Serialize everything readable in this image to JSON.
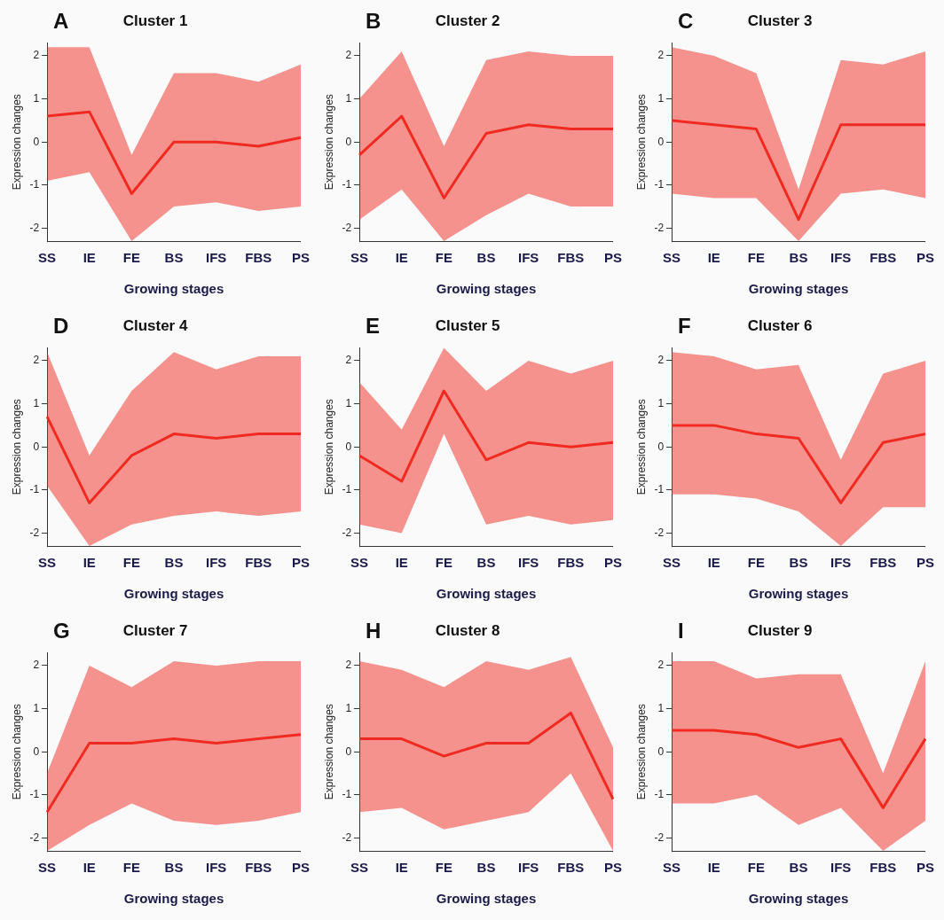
{
  "chart_data": [
    {
      "type": "line",
      "title": "Cluster 1",
      "xlabel": "Growing stages",
      "ylabel": "Expression changes",
      "annotations": [
        "A"
      ],
      "categories": [
        "SS",
        "IE",
        "FE",
        "BS",
        "IFS",
        "FBS",
        "PS"
      ],
      "ylim": [
        -2.3,
        2.3
      ],
      "yticks": [
        -2,
        -1,
        0,
        1,
        2
      ],
      "marker": "none",
      "series": [
        {
          "color": "#f02a20",
          "values": [
            0.6,
            0.7,
            -1.2,
            0,
            0,
            -0.1,
            0.1
          ],
          "lower": [
            -0.9,
            -0.7,
            -2.3,
            -1.5,
            -1.4,
            -1.6,
            -1.5
          ],
          "upper": [
            2.2,
            2.2,
            -0.3,
            1.6,
            1.6,
            1.4,
            1.8
          ]
        }
      ]
    },
    {
      "type": "line",
      "title": "Cluster 2",
      "xlabel": "Growing stages",
      "ylabel": "Expression changes",
      "annotations": [
        "B"
      ],
      "categories": [
        "SS",
        "IE",
        "FE",
        "BS",
        "IFS",
        "FBS",
        "PS"
      ],
      "ylim": [
        -2.3,
        2.3
      ],
      "yticks": [
        -2,
        -1,
        0,
        1,
        2
      ],
      "marker": "none",
      "series": [
        {
          "color": "#f02a20",
          "values": [
            -0.3,
            0.6,
            -1.3,
            0.2,
            0.4,
            0.3,
            0.3
          ],
          "lower": [
            -1.8,
            -1.1,
            -2.3,
            -1.7,
            -1.2,
            -1.5,
            -1.5
          ],
          "upper": [
            1,
            2.1,
            -0.1,
            1.9,
            2.1,
            2,
            2
          ]
        }
      ]
    },
    {
      "type": "line",
      "title": "Cluster 3",
      "xlabel": "Growing stages",
      "ylabel": "Expression changes",
      "annotations": [
        "C"
      ],
      "categories": [
        "SS",
        "IE",
        "FE",
        "BS",
        "IFS",
        "FBS",
        "PS"
      ],
      "ylim": [
        -2.3,
        2.3
      ],
      "yticks": [
        -2,
        -1,
        0,
        1,
        2
      ],
      "marker": "none",
      "series": [
        {
          "color": "#f02a20",
          "values": [
            0.5,
            0.4,
            0.3,
            -1.8,
            0.4,
            0.4,
            0.4
          ],
          "lower": [
            -1.2,
            -1.3,
            -1.3,
            -2.3,
            -1.2,
            -1.1,
            -1.3
          ],
          "upper": [
            2.2,
            2,
            1.6,
            -1.1,
            1.9,
            1.8,
            2.1
          ]
        }
      ]
    },
    {
      "type": "line",
      "title": "Cluster 4",
      "xlabel": "Growing stages",
      "ylabel": "Expression changes",
      "annotations": [
        "D"
      ],
      "categories": [
        "SS",
        "IE",
        "FE",
        "BS",
        "IFS",
        "FBS",
        "PS"
      ],
      "ylim": [
        -2.3,
        2.3
      ],
      "yticks": [
        -2,
        -1,
        0,
        1,
        2
      ],
      "marker": "none",
      "series": [
        {
          "color": "#f02a20",
          "values": [
            0.7,
            -1.3,
            -0.2,
            0.3,
            0.2,
            0.3,
            0.3
          ],
          "lower": [
            -0.9,
            -2.3,
            -1.8,
            -1.6,
            -1.5,
            -1.6,
            -1.5
          ],
          "upper": [
            2.2,
            -0.2,
            1.3,
            2.2,
            1.8,
            2.1,
            2.1
          ]
        }
      ]
    },
    {
      "type": "line",
      "title": "Cluster 5",
      "xlabel": "Growing stages",
      "ylabel": "Expression changes",
      "annotations": [
        "E"
      ],
      "categories": [
        "SS",
        "IE",
        "FE",
        "BS",
        "IFS",
        "FBS",
        "PS"
      ],
      "ylim": [
        -2.3,
        2.3
      ],
      "yticks": [
        -2,
        -1,
        0,
        1,
        2
      ],
      "marker": "none",
      "series": [
        {
          "color": "#f02a20",
          "values": [
            -0.2,
            -0.8,
            1.3,
            -0.3,
            0.1,
            0,
            0.1
          ],
          "lower": [
            -1.8,
            -2,
            0.3,
            -1.8,
            -1.6,
            -1.8,
            -1.7
          ],
          "upper": [
            1.5,
            0.4,
            2.3,
            1.3,
            2,
            1.7,
            2
          ]
        }
      ]
    },
    {
      "type": "line",
      "title": "Cluster 6",
      "xlabel": "Growing stages",
      "ylabel": "Expression changes",
      "annotations": [
        "F"
      ],
      "categories": [
        "SS",
        "IE",
        "FE",
        "BS",
        "IFS",
        "FBS",
        "PS"
      ],
      "ylim": [
        -2.3,
        2.3
      ],
      "yticks": [
        -2,
        -1,
        0,
        1,
        2
      ],
      "marker": "none",
      "series": [
        {
          "color": "#f02a20",
          "values": [
            0.5,
            0.5,
            0.3,
            0.2,
            -1.3,
            0.1,
            0.3
          ],
          "lower": [
            -1.1,
            -1.1,
            -1.2,
            -1.5,
            -2.3,
            -1.4,
            -1.4
          ],
          "upper": [
            2.2,
            2.1,
            1.8,
            1.9,
            -0.3,
            1.7,
            2
          ]
        }
      ]
    },
    {
      "type": "line",
      "title": "Cluster 7",
      "xlabel": "Growing stages",
      "ylabel": "Expression changes",
      "annotations": [
        "G"
      ],
      "categories": [
        "SS",
        "IE",
        "FE",
        "BS",
        "IFS",
        "FBS",
        "PS"
      ],
      "ylim": [
        -2.3,
        2.3
      ],
      "yticks": [
        -2,
        -1,
        0,
        1,
        2
      ],
      "marker": "none",
      "series": [
        {
          "color": "#f02a20",
          "values": [
            -1.4,
            0.2,
            0.2,
            0.3,
            0.2,
            0.3,
            0.4
          ],
          "lower": [
            -2.3,
            -1.7,
            -1.2,
            -1.6,
            -1.7,
            -1.6,
            -1.4
          ],
          "upper": [
            -0.5,
            2,
            1.5,
            2.1,
            2,
            2.1,
            2.1
          ]
        }
      ]
    },
    {
      "type": "line",
      "title": "Cluster 8",
      "xlabel": "Growing stages",
      "ylabel": "Expression changes",
      "annotations": [
        "H"
      ],
      "categories": [
        "SS",
        "IE",
        "FE",
        "BS",
        "IFS",
        "FBS",
        "PS"
      ],
      "ylim": [
        -2.3,
        2.3
      ],
      "yticks": [
        -2,
        -1,
        0,
        1,
        2
      ],
      "marker": "none",
      "series": [
        {
          "color": "#f02a20",
          "values": [
            0.3,
            0.3,
            -0.1,
            0.2,
            0.2,
            0.9,
            -1.1
          ],
          "lower": [
            -1.4,
            -1.3,
            -1.8,
            -1.6,
            -1.4,
            -0.5,
            -2.3
          ],
          "upper": [
            2.1,
            1.9,
            1.5,
            2.1,
            1.9,
            2.2,
            0.1
          ]
        }
      ]
    },
    {
      "type": "line",
      "title": "Cluster 9",
      "xlabel": "Growing stages",
      "ylabel": "Expression changes",
      "annotations": [
        "I"
      ],
      "categories": [
        "SS",
        "IE",
        "FE",
        "BS",
        "IFS",
        "FBS",
        "PS"
      ],
      "ylim": [
        -2.3,
        2.3
      ],
      "yticks": [
        -2,
        -1,
        0,
        1,
        2
      ],
      "marker": "none",
      "series": [
        {
          "color": "#f02a20",
          "values": [
            0.5,
            0.5,
            0.4,
            0.1,
            0.3,
            -1.3,
            0.3
          ],
          "lower": [
            -1.2,
            -1.2,
            -1,
            -1.7,
            -1.3,
            -2.3,
            -1.6
          ],
          "upper": [
            2.1,
            2.1,
            1.7,
            1.8,
            1.8,
            -0.5,
            2.1
          ]
        }
      ]
    }
  ]
}
